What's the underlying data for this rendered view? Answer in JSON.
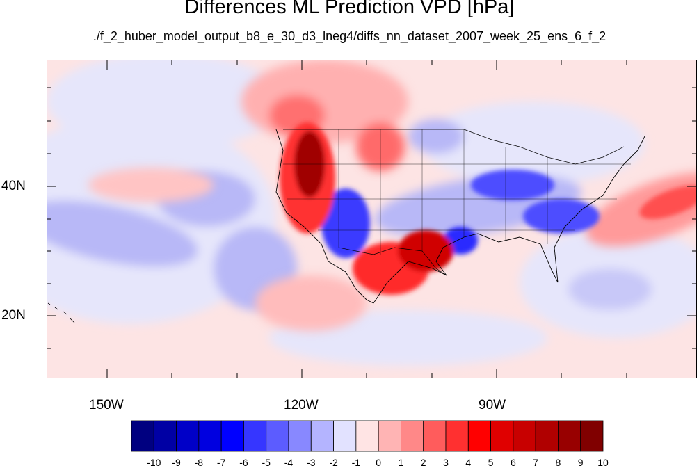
{
  "title": "Differences ML Prediction VPD [hPa]",
  "subtitle": "./f_2_huber_model_output_b8_e_30_d3_lneg4/diffs_nn_dataset_2007_week_25_ens_6_f_2",
  "map": {
    "projection": "cylindrical equidistant",
    "extent_lon": [
      -160,
      -60
    ],
    "extent_lat": [
      11,
      59
    ],
    "lon_labels": [
      "150W",
      "120W",
      "90W"
    ],
    "lat_labels": [
      "40N",
      "20N"
    ]
  },
  "colorbar": {
    "tick_labels": [
      "-10",
      "-9",
      "-8",
      "-7",
      "-6",
      "-5",
      "-4",
      "-3",
      "-2",
      "-1",
      "0",
      "1",
      "2",
      "3",
      "4",
      "5",
      "6",
      "7",
      "8",
      "9",
      "10"
    ],
    "colors": [
      "#000080",
      "#0000a4",
      "#0000c8",
      "#0000e0",
      "#0000ff",
      "#3636ff",
      "#5c5cff",
      "#8888ff",
      "#b4b4ff",
      "#e2e2ff",
      "#ffe4e4",
      "#ffb4b4",
      "#ff8888",
      "#ff5c5c",
      "#ff3030",
      "#ff0000",
      "#e00000",
      "#c80000",
      "#b00000",
      "#980000",
      "#800000"
    ]
  }
}
